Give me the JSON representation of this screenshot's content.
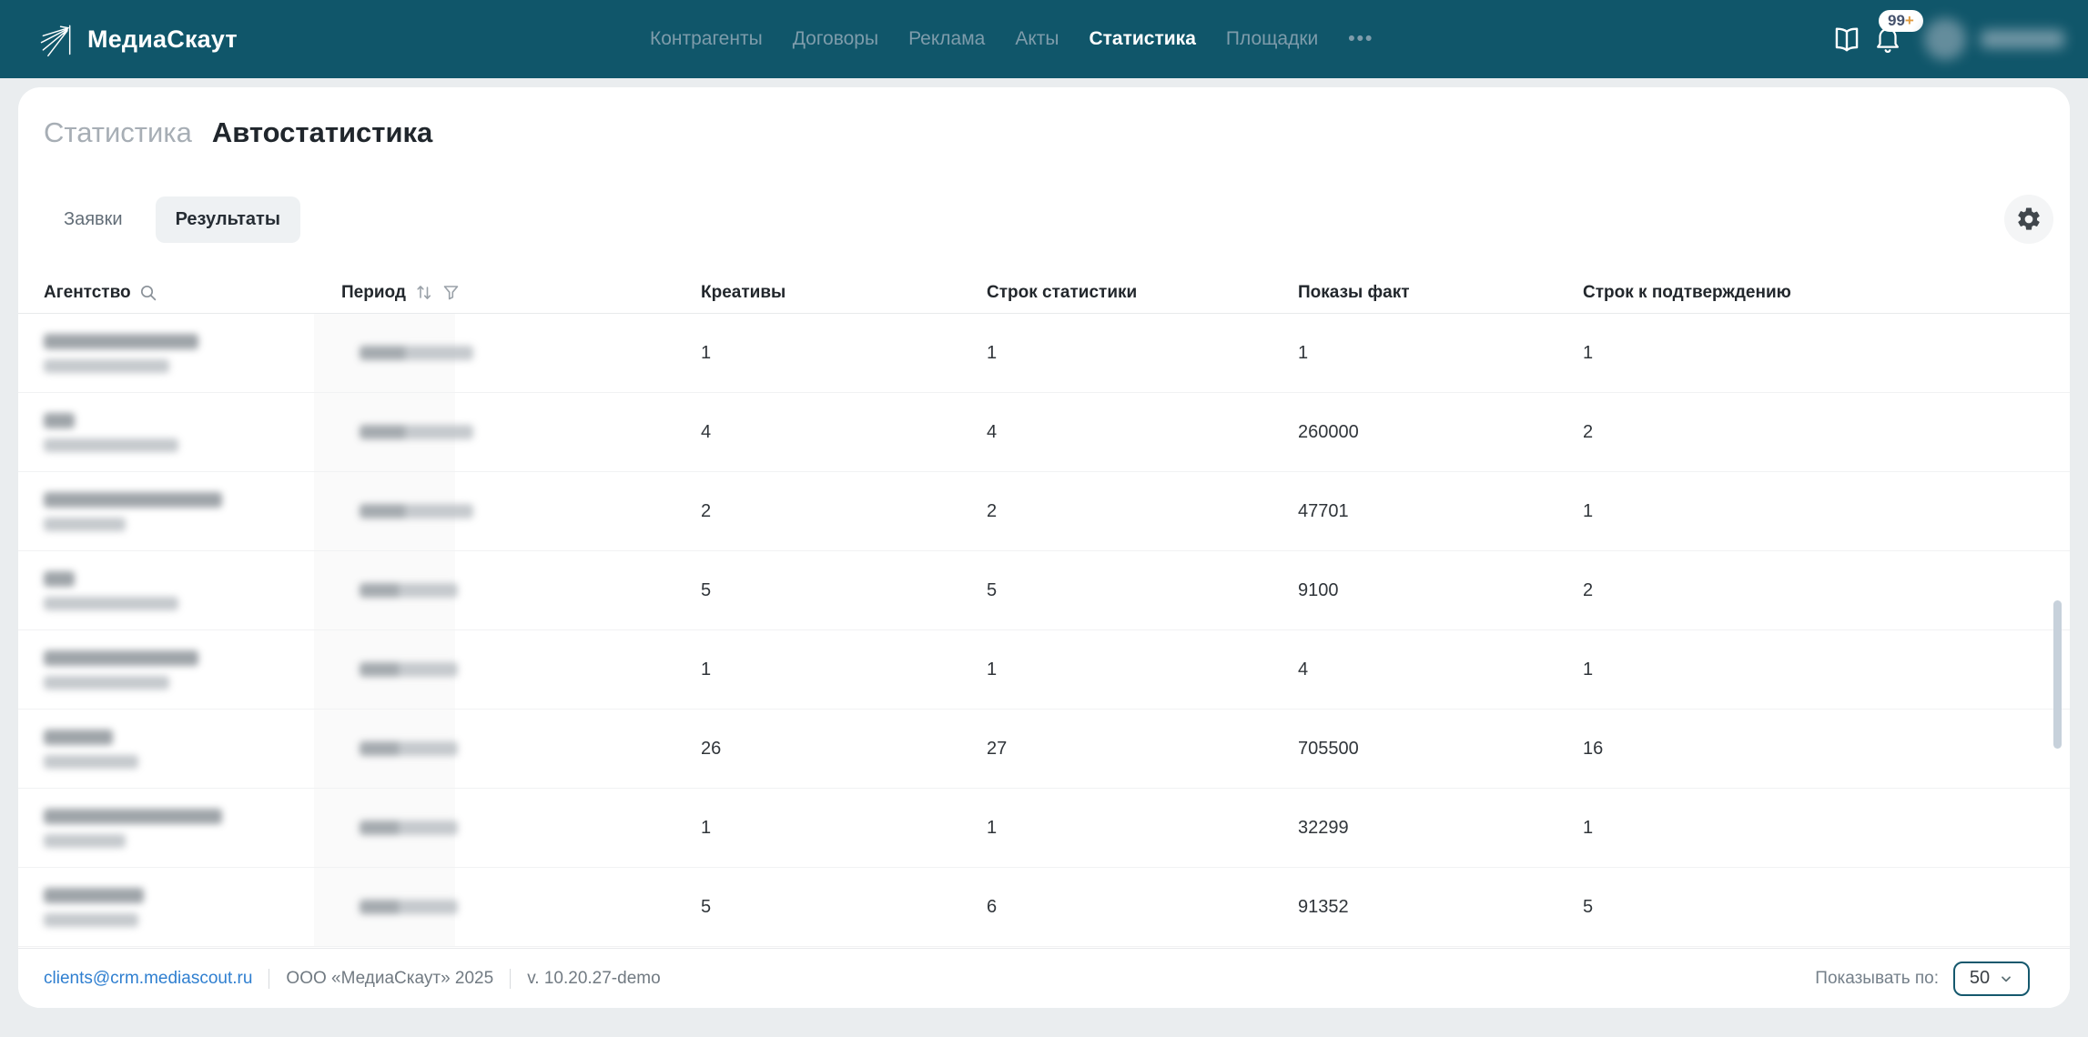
{
  "header": {
    "logo_text": "МедиаСкаут",
    "nav": [
      {
        "label": "Контрагенты",
        "active": false
      },
      {
        "label": "Договоры",
        "active": false
      },
      {
        "label": "Реклама",
        "active": false
      },
      {
        "label": "Акты",
        "active": false
      },
      {
        "label": "Статистика",
        "active": true
      },
      {
        "label": "Площадки",
        "active": false
      }
    ],
    "more_label": "•••",
    "notifications_badge": "99+",
    "user_redacted": true
  },
  "breadcrumb": {
    "section": "Статистика",
    "page": "Автостатистика"
  },
  "tabs": [
    {
      "label": "Заявки",
      "active": false
    },
    {
      "label": "Результаты",
      "active": true
    }
  ],
  "table": {
    "columns": [
      {
        "label": "Агентство",
        "icons": [
          "search-icon"
        ]
      },
      {
        "label": "Период",
        "icons": [
          "sort-icon",
          "filter-icon"
        ]
      },
      {
        "label": "Креативы",
        "icons": []
      },
      {
        "label": "Строк статистики",
        "icons": []
      },
      {
        "label": "Показы факт",
        "icons": []
      },
      {
        "label": "Строк к подтверждению",
        "icons": []
      }
    ],
    "rows": [
      {
        "values": [
          "1",
          "1",
          "1",
          "1"
        ],
        "redacted": true,
        "mask": {
          "l1": 170,
          "l2": 138,
          "period": 125
        }
      },
      {
        "values": [
          "4",
          "4",
          "260000",
          "2"
        ],
        "redacted": true,
        "mask": {
          "l1": 34,
          "l2": 148,
          "period": 125
        }
      },
      {
        "values": [
          "2",
          "2",
          "47701",
          "1"
        ],
        "redacted": true,
        "mask": {
          "l1": 196,
          "l2": 90,
          "period": 125
        }
      },
      {
        "values": [
          "5",
          "5",
          "9100",
          "2"
        ],
        "redacted": true,
        "mask": {
          "l1": 34,
          "l2": 148,
          "period": 108
        }
      },
      {
        "values": [
          "1",
          "1",
          "4",
          "1"
        ],
        "redacted": true,
        "mask": {
          "l1": 170,
          "l2": 138,
          "period": 108
        }
      },
      {
        "values": [
          "26",
          "27",
          "705500",
          "16"
        ],
        "redacted": true,
        "mask": {
          "l1": 76,
          "l2": 104,
          "period": 108
        }
      },
      {
        "values": [
          "1",
          "1",
          "32299",
          "1"
        ],
        "redacted": true,
        "mask": {
          "l1": 196,
          "l2": 90,
          "period": 108
        }
      },
      {
        "values": [
          "5",
          "6",
          "91352",
          "5"
        ],
        "redacted": true,
        "mask": {
          "l1": 110,
          "l2": 104,
          "period": 108
        }
      }
    ]
  },
  "footer": {
    "email": "clients@crm.mediascout.ru",
    "company": "ООО «МедиаСкаут» 2025",
    "version": "v. 10.20.27-demo",
    "page_size_label": "Показывать по:",
    "page_size": "50"
  },
  "colors": {
    "topbar_bg": "#10566A",
    "page_bg": "#EAEDEF",
    "link": "#2F7FD0",
    "select_border": "#15586D",
    "badge_plus": "#E09B3F",
    "sorted_column_bg": "#FAFAFA"
  }
}
